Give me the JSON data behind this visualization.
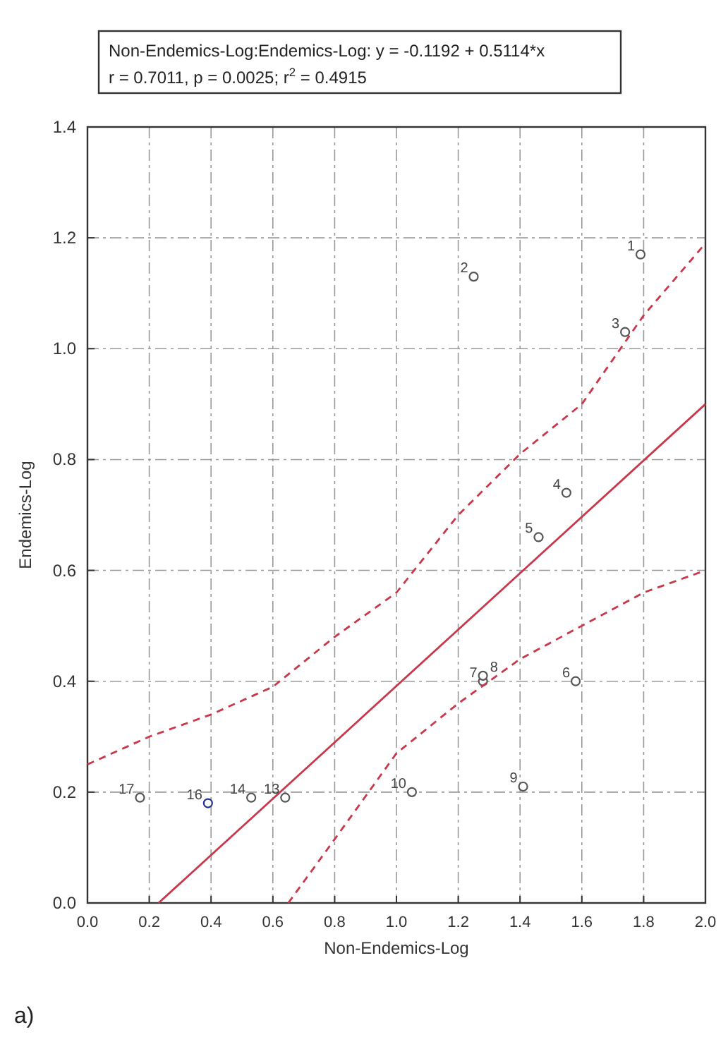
{
  "chart_data": {
    "type": "scatter",
    "xlabel": "Non-Endemics-Log",
    "ylabel": "Endemics-Log",
    "xlim": [
      0,
      2
    ],
    "ylim": [
      0,
      1.4
    ],
    "xticks": [
      {
        "value": 0,
        "label": "0.0"
      },
      {
        "value": 0.2,
        "label": "0.2"
      },
      {
        "value": 0.4,
        "label": "0.4"
      },
      {
        "value": 0.6,
        "label": "0.6"
      },
      {
        "value": 0.8,
        "label": "0.8"
      },
      {
        "value": 1,
        "label": "1.0"
      },
      {
        "value": 1.2,
        "label": "1.2"
      },
      {
        "value": 1.4,
        "label": "1.4"
      },
      {
        "value": 1.6,
        "label": "1.6"
      },
      {
        "value": 1.8,
        "label": "1.8"
      },
      {
        "value": 2,
        "label": "2.0"
      }
    ],
    "yticks": [
      {
        "value": 0,
        "label": "0.0"
      },
      {
        "value": 0.2,
        "label": "0.2"
      },
      {
        "value": 0.4,
        "label": "0.4"
      },
      {
        "value": 0.6,
        "label": "0.6"
      },
      {
        "value": 0.8,
        "label": "0.8"
      },
      {
        "value": 1,
        "label": "1.0"
      },
      {
        "value": 1.2,
        "label": "1.2"
      },
      {
        "value": 1.4,
        "label": "1.4"
      }
    ],
    "grid": true,
    "series": [
      {
        "marker": "circle",
        "color": "#555555",
        "x": [
          1.79,
          1.25,
          1.74,
          1.55,
          1.46,
          1.58,
          1.28,
          1.28,
          1.41,
          1.05,
          0.64,
          0.53,
          0.17
        ],
        "values": [
          1.17,
          1.13,
          1.03,
          0.74,
          0.66,
          0.4,
          0.4,
          0.41,
          0.21,
          0.2,
          0.19,
          0.19,
          0.19
        ]
      },
      {
        "marker": "circle",
        "color": "#1f2f9a",
        "x": [
          0.39
        ],
        "values": [
          0.18
        ]
      },
      {
        "type": "line",
        "color": "#c8384a",
        "line_style": "solid",
        "x": [
          0.23,
          2
        ],
        "values": [
          0,
          0.9
        ]
      },
      {
        "type": "line",
        "color": "#c8384a",
        "line_style": "dashed",
        "x": [
          0,
          0.2,
          0.4,
          0.6,
          0.8,
          1,
          1.2,
          1.4,
          1.6,
          1.8,
          2
        ],
        "values": [
          0.25,
          0.3,
          0.34,
          0.39,
          0.48,
          0.56,
          0.7,
          0.81,
          0.9,
          1.06,
          1.19
        ]
      },
      {
        "type": "line",
        "color": "#c8384a",
        "line_style": "dashed",
        "x": [
          0.65,
          0.8,
          1,
          1.2,
          1.4,
          1.6,
          1.8,
          2
        ],
        "values": [
          0,
          0.115,
          0.27,
          0.36,
          0.44,
          0.5,
          0.56,
          0.6
        ]
      }
    ],
    "annotations": [
      "Non-Endemics-Log:Endemics-Log:   y = -0.1192 + 0.5114*x",
      "r = 0.7011, p = 0.0025; r$^{2}$ = 0.4915",
      "a)",
      {
        "text": "1",
        "x": 1.79,
        "y": 1.17
      },
      {
        "text": "2",
        "x": 1.25,
        "y": 1.13
      },
      {
        "text": "3",
        "x": 1.74,
        "y": 1.03
      },
      {
        "text": "4",
        "x": 1.55,
        "y": 0.74
      },
      {
        "text": "5",
        "x": 1.46,
        "y": 0.66
      },
      {
        "text": "6",
        "x": 1.58,
        "y": 0.4
      },
      {
        "text": "7",
        "x": 1.28,
        "y": 0.4
      },
      {
        "text": "8",
        "x": 1.28,
        "y": 0.41
      },
      {
        "text": "9",
        "x": 1.41,
        "y": 0.21
      },
      {
        "text": "10",
        "x": 1.05,
        "y": 0.2
      },
      {
        "text": "13",
        "x": 0.64,
        "y": 0.19
      },
      {
        "text": "14",
        "x": 0.53,
        "y": 0.19
      },
      {
        "text": "16",
        "x": 0.39,
        "y": 0.18
      },
      {
        "text": "17",
        "x": 0.17,
        "y": 0.19
      }
    ]
  }
}
